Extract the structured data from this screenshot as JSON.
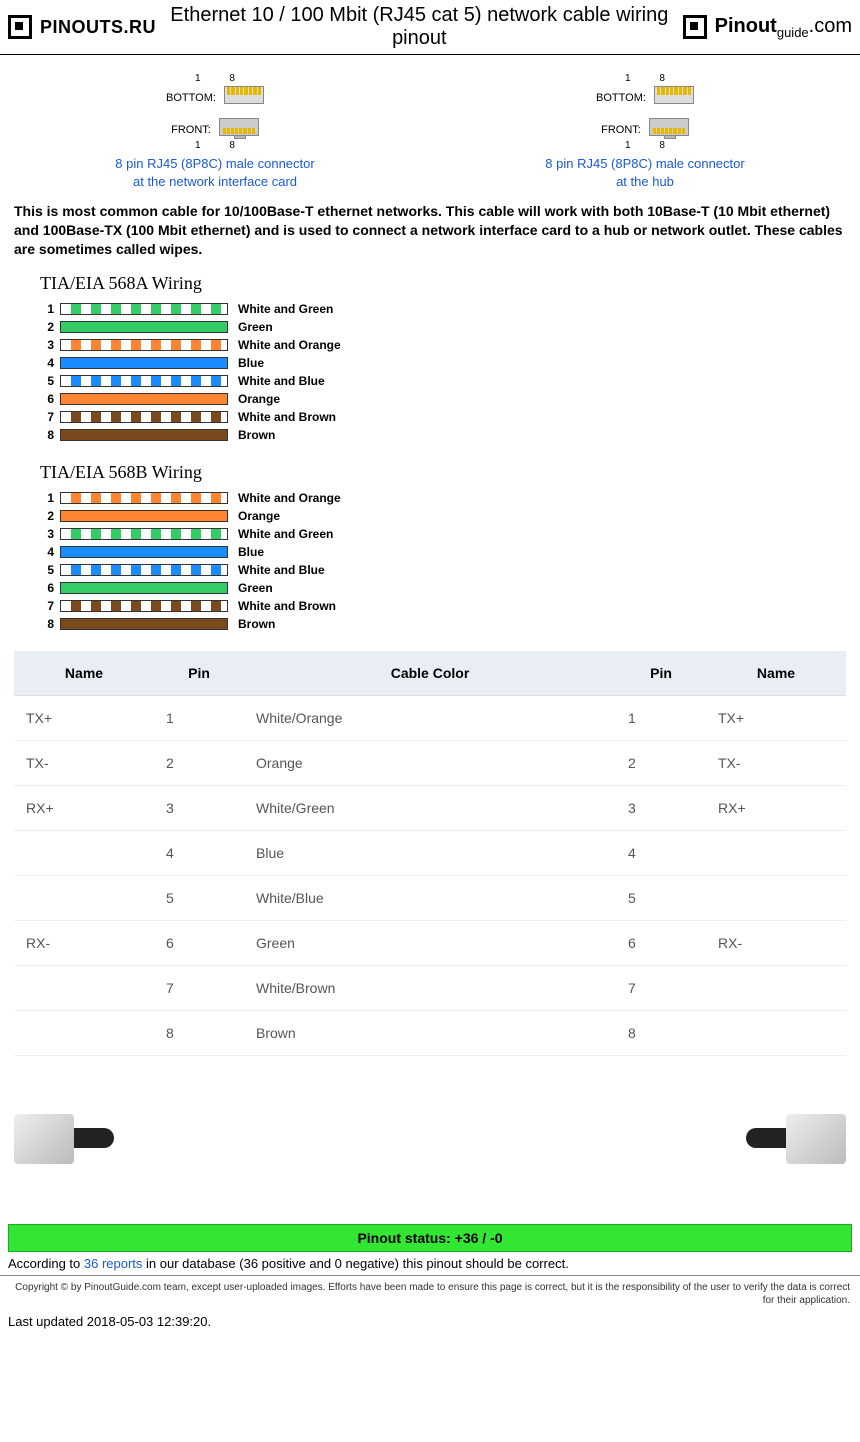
{
  "header": {
    "site_name": "PINOUTS.RU",
    "page_title": "Ethernet 10 / 100 Mbit (RJ45 cat 5) network cable wiring pinout",
    "guide_logo_main": "Pinout",
    "guide_logo_sub": "guide",
    "guide_logo_ext": ".com"
  },
  "connectors": {
    "left": {
      "line1": "8 pin RJ45 (8P8C) male connector",
      "line2": "at the network interface card",
      "bottom_label": "BOTTOM:",
      "front_label": "FRONT:"
    },
    "right": {
      "line1": "8 pin RJ45 (8P8C) male connector",
      "line2": "at the hub",
      "bottom_label": "BOTTOM:",
      "front_label": "FRONT:"
    }
  },
  "intro": "This is most common cable for 10/100Base-T ethernet networks. This cable will work with both 10Base-T (10 Mbit ethernet) and 100Base-TX (100 Mbit ethernet) and is used to connect a network interface card to a hub or network outlet. These cables are sometimes called wipes.",
  "colors": {
    "green": "#33cc66",
    "orange": "#ff8533",
    "blue": "#1a8cff",
    "brown": "#7a4a1f",
    "white": "#ffffff"
  },
  "wiring_a": {
    "title": "TIA/EIA 568A Wiring",
    "rows": [
      {
        "num": "1",
        "label": "White and Green",
        "type": "stripe",
        "color": "green"
      },
      {
        "num": "2",
        "label": "Green",
        "type": "solid",
        "color": "green"
      },
      {
        "num": "3",
        "label": "White and Orange",
        "type": "stripe",
        "color": "orange"
      },
      {
        "num": "4",
        "label": "Blue",
        "type": "solid",
        "color": "blue"
      },
      {
        "num": "5",
        "label": "White and Blue",
        "type": "stripe",
        "color": "blue"
      },
      {
        "num": "6",
        "label": "Orange",
        "type": "solid",
        "color": "orange"
      },
      {
        "num": "7",
        "label": "White and Brown",
        "type": "stripe",
        "color": "brown"
      },
      {
        "num": "8",
        "label": "Brown",
        "type": "solid",
        "color": "brown"
      }
    ]
  },
  "wiring_b": {
    "title": "TIA/EIA 568B Wiring",
    "rows": [
      {
        "num": "1",
        "label": "White and Orange",
        "type": "stripe",
        "color": "orange"
      },
      {
        "num": "2",
        "label": "Orange",
        "type": "solid",
        "color": "orange"
      },
      {
        "num": "3",
        "label": "White and Green",
        "type": "stripe",
        "color": "green"
      },
      {
        "num": "4",
        "label": "Blue",
        "type": "solid",
        "color": "blue"
      },
      {
        "num": "5",
        "label": "White and Blue",
        "type": "stripe",
        "color": "blue"
      },
      {
        "num": "6",
        "label": "Green",
        "type": "solid",
        "color": "green"
      },
      {
        "num": "7",
        "label": "White and Brown",
        "type": "stripe",
        "color": "brown"
      },
      {
        "num": "8",
        "label": "Brown",
        "type": "solid",
        "color": "brown"
      }
    ]
  },
  "table": {
    "headers": [
      "Name",
      "Pin",
      "Cable Color",
      "Pin",
      "Name"
    ],
    "rows": [
      [
        "TX+",
        "1",
        "White/Orange",
        "1",
        "TX+"
      ],
      [
        "TX-",
        "2",
        "Orange",
        "2",
        "TX-"
      ],
      [
        "RX+",
        "3",
        "White/Green",
        "3",
        "RX+"
      ],
      [
        "",
        "4",
        "Blue",
        "4",
        ""
      ],
      [
        "",
        "5",
        "White/Blue",
        "5",
        ""
      ],
      [
        "RX-",
        "6",
        "Green",
        "6",
        "RX-"
      ],
      [
        "",
        "7",
        "White/Brown",
        "7",
        ""
      ],
      [
        "",
        "8",
        "Brown",
        "8",
        ""
      ]
    ]
  },
  "status": {
    "bar": "Pinout status: +36 / -0",
    "reports_link": "36 reports",
    "text_before": "According to ",
    "text_after": " in our database (36 positive and 0 negative) this pinout should be correct."
  },
  "copyright": "Copyright © by PinoutGuide.com team, except user-uploaded images. Efforts have been made to ensure this page is correct, but it is the responsibility of the user to verify the data is correct for their application.",
  "updated": "Last updated 2018-05-03 12:39:20."
}
